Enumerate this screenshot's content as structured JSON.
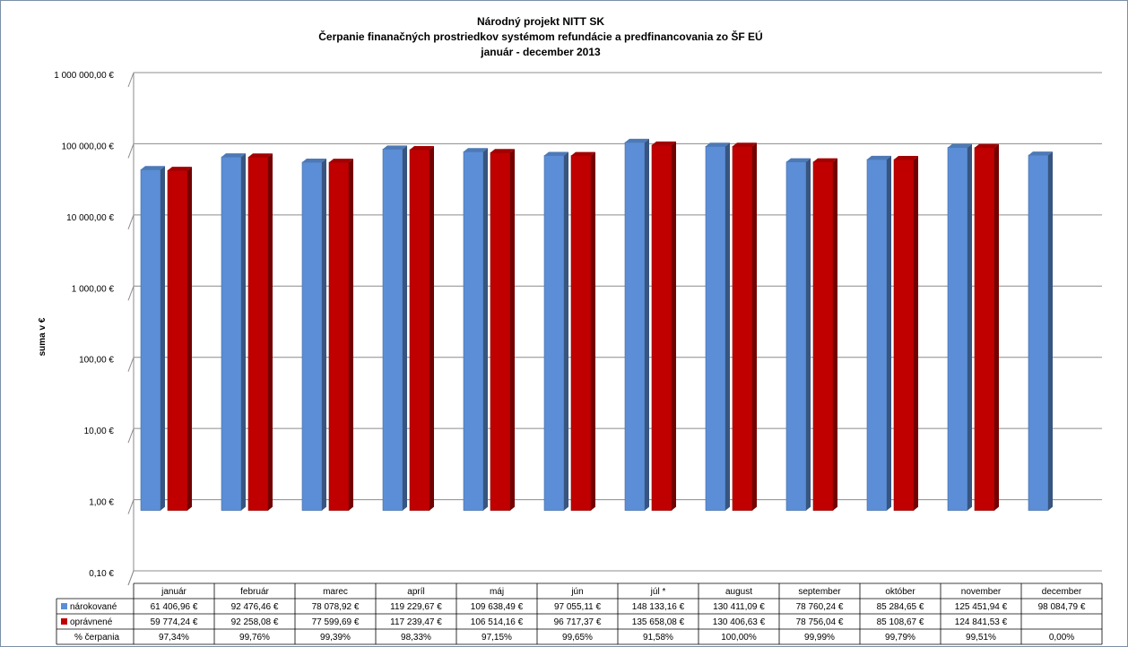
{
  "chart_data": {
    "type": "bar",
    "title": [
      "Národný projekt NITT SK",
      "Čerpanie finanačných prostriedkov systémom refundácie a predfinancovania zo ŠF EÚ",
      "január - december 2013"
    ],
    "ylabel": "suma v €",
    "yscale": "log",
    "ylim": [
      0.1,
      1000000
    ],
    "yticks": [
      "0,10 €",
      "1,00 €",
      "10,00 €",
      "100,00 €",
      "1 000,00 €",
      "10 000,00 €",
      "100 000,00 €",
      "1 000 000,00 €"
    ],
    "grid": true,
    "categories": [
      "január",
      "február",
      "marec",
      "apríl",
      "máj",
      "jún",
      "júl *",
      "august",
      "september",
      "október",
      "november",
      "december"
    ],
    "series": [
      {
        "name": "nárokované",
        "color": "#5b8ed6",
        "values": [
          61406.96,
          92476.46,
          78078.92,
          119229.67,
          109638.49,
          97055.11,
          148133.16,
          130411.09,
          78760.24,
          85284.65,
          125451.94,
          98084.79
        ],
        "labels": [
          "61 406,96 €",
          "92 476,46 €",
          "78 078,92 €",
          "119 229,67 €",
          "109 638,49 €",
          "97 055,11 €",
          "148 133,16 €",
          "130 411,09 €",
          "78 760,24 €",
          "85 284,65 €",
          "125 451,94 €",
          "98 084,79 €"
        ]
      },
      {
        "name": "oprávnené",
        "color": "#c00000",
        "values": [
          59774.24,
          92258.08,
          77599.69,
          117239.47,
          106514.16,
          96717.37,
          135658.08,
          130406.63,
          78756.04,
          85108.67,
          124841.53,
          null
        ],
        "labels": [
          "59 774,24 €",
          "92 258,08 €",
          "77 599,69 €",
          "117 239,47 €",
          "106 514,16 €",
          "96 717,37 €",
          "135 658,08 €",
          "130 406,63 €",
          "78 756,04 €",
          "85 108,67 €",
          "124 841,53 €",
          ""
        ]
      }
    ],
    "table_row3": {
      "name": "% čerpania",
      "labels": [
        "97,34%",
        "99,76%",
        "99,39%",
        "98,33%",
        "97,15%",
        "99,65%",
        "91,58%",
        "100,00%",
        "99,99%",
        "99,79%",
        "99,51%",
        "0,00%"
      ]
    },
    "legend": "data-table"
  }
}
